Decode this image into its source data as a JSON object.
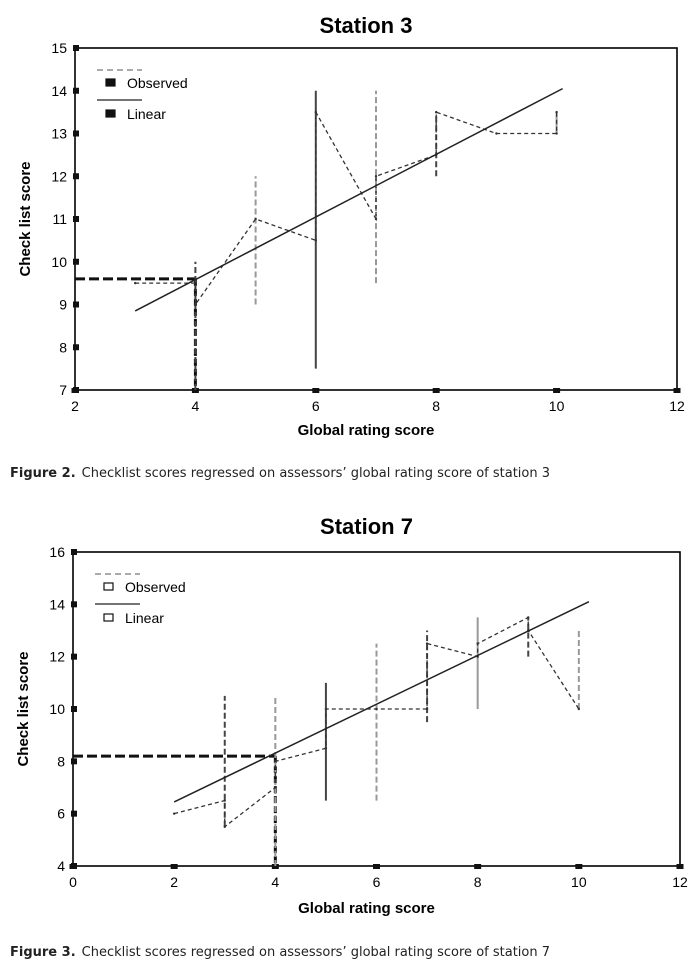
{
  "charts": [
    {
      "type": "line",
      "title": "Station 3",
      "xlabel": "Global rating score",
      "ylabel": "Check list score",
      "xlim": [
        2,
        12
      ],
      "ylim": [
        7,
        15
      ],
      "xticks": [
        2,
        4,
        6,
        8,
        10,
        12
      ],
      "yticks": [
        7,
        8,
        9,
        10,
        11,
        12,
        13,
        14,
        15
      ],
      "legend": {
        "position": "top-left",
        "observed": "Observed",
        "linear": "Linear"
      },
      "reference": {
        "x": 4,
        "y": 9.6
      },
      "observed": {
        "x": [
          3,
          4,
          4,
          5,
          6,
          6,
          7,
          7,
          8,
          8,
          9,
          10,
          10
        ],
        "y": [
          9.5,
          9.5,
          9.0,
          11.0,
          10.5,
          13.5,
          11.0,
          12.0,
          12.5,
          13.5,
          13.0,
          13.0,
          13.5
        ]
      },
      "ranges": [
        {
          "x": 4,
          "low": 7,
          "high": 10
        },
        {
          "x": 5,
          "low": 9,
          "high": 12
        },
        {
          "x": 6,
          "low": 7.5,
          "high": 14
        },
        {
          "x": 7,
          "low": 9.5,
          "high": 14
        },
        {
          "x": 8,
          "low": 12,
          "high": 13.5
        },
        {
          "x": 10,
          "low": 13,
          "high": 13.5
        }
      ],
      "linear": {
        "x": [
          3,
          10.1
        ],
        "y": [
          8.85,
          14.05
        ]
      }
    },
    {
      "type": "line",
      "title": "Station 7",
      "xlabel": "Global rating score",
      "ylabel": "Check list score",
      "xlim": [
        0,
        12
      ],
      "ylim": [
        4,
        16
      ],
      "xticks": [
        0,
        2,
        4,
        6,
        8,
        10,
        12
      ],
      "yticks": [
        4,
        6,
        8,
        10,
        12,
        14,
        16
      ],
      "legend": {
        "position": "top-left",
        "observed": "Observed",
        "linear": "Linear"
      },
      "reference": {
        "x": 4,
        "y": 8.2
      },
      "observed": {
        "x": [
          2,
          3,
          3,
          4,
          4,
          5,
          5,
          6,
          7,
          7,
          8,
          8,
          9,
          9,
          10
        ],
        "y": [
          6.0,
          6.5,
          5.5,
          7.0,
          8.0,
          8.5,
          10.0,
          10.0,
          10.0,
          12.5,
          12.0,
          12.5,
          13.5,
          13.0,
          10.0
        ]
      },
      "ranges": [
        {
          "x": 3,
          "low": 5.5,
          "high": 10.5
        },
        {
          "x": 4,
          "low": 4,
          "high": 10.5
        },
        {
          "x": 5,
          "low": 6.5,
          "high": 11
        },
        {
          "x": 6,
          "low": 6.5,
          "high": 12.5
        },
        {
          "x": 7,
          "low": 9.5,
          "high": 13
        },
        {
          "x": 8,
          "low": 10,
          "high": 13.5
        },
        {
          "x": 9,
          "low": 12,
          "high": 13.5
        },
        {
          "x": 10,
          "low": 10,
          "high": 13
        }
      ],
      "linear": {
        "x": [
          2,
          10.2
        ],
        "y": [
          6.45,
          14.1
        ]
      }
    }
  ],
  "chart_data": [
    {
      "type": "line",
      "title": "Station 3",
      "xlabel": "Global rating score",
      "ylabel": "Check list score",
      "xlim": [
        2,
        12
      ],
      "ylim": [
        7,
        15
      ],
      "series": [
        {
          "name": "Observed",
          "x": [
            3,
            4,
            4,
            5,
            6,
            6,
            7,
            7,
            8,
            8,
            9,
            10,
            10
          ],
          "y": [
            9.5,
            9.5,
            9.0,
            11.0,
            10.5,
            13.5,
            11.0,
            12.0,
            12.5,
            13.5,
            13.0,
            13.0,
            13.5
          ]
        },
        {
          "name": "Linear",
          "x": [
            3,
            10.1
          ],
          "y": [
            8.85,
            14.05
          ]
        }
      ]
    },
    {
      "type": "line",
      "title": "Station 7",
      "xlabel": "Global rating score",
      "ylabel": "Check list score",
      "xlim": [
        0,
        12
      ],
      "ylim": [
        4,
        16
      ],
      "series": [
        {
          "name": "Observed",
          "x": [
            2,
            3,
            3,
            4,
            4,
            5,
            5,
            6,
            7,
            7,
            8,
            8,
            9,
            9,
            10
          ],
          "y": [
            6.0,
            6.5,
            5.5,
            7.0,
            8.0,
            8.5,
            10.0,
            10.0,
            10.0,
            12.5,
            12.0,
            12.5,
            13.5,
            13.0,
            10.0
          ]
        },
        {
          "name": "Linear",
          "x": [
            2,
            10.2
          ],
          "y": [
            6.45,
            14.1
          ]
        }
      ]
    }
  ],
  "captions": [
    {
      "label": "Figure 2.",
      "text": "Checklist scores regressed on assessors’ global rating score of station 3"
    },
    {
      "label": "Figure 3.",
      "text": "Checklist scores regressed on assessors’ global rating score of station 7"
    }
  ]
}
